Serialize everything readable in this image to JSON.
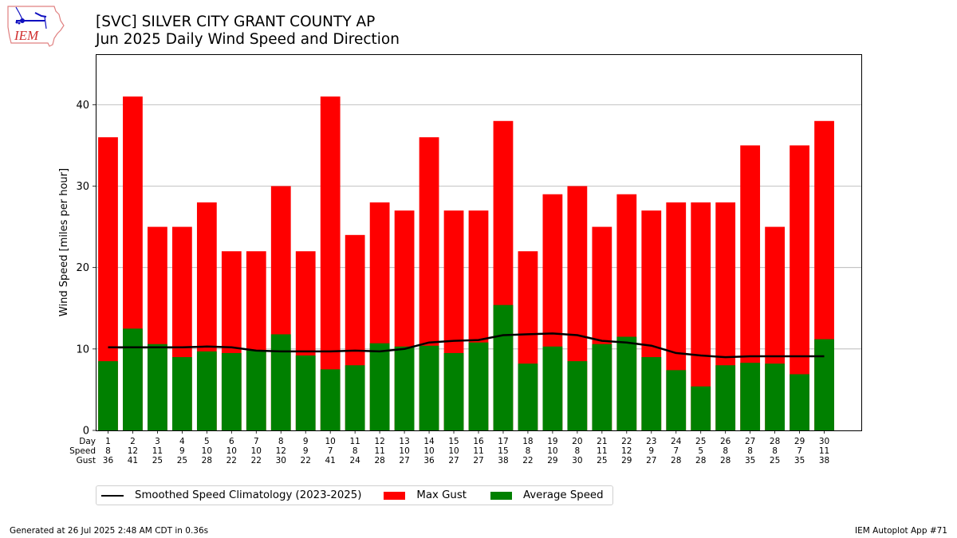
{
  "header": {
    "title_line1": "[SVC] SILVER CITY GRANT COUNTY AP",
    "title_line2": "Jun 2025 Daily Wind Speed and Direction",
    "logo_text": "IEM"
  },
  "chart_data": {
    "type": "bar",
    "title": "[SVC] SILVER CITY GRANT COUNTY AP\nJun 2025 Daily Wind Speed and Direction",
    "xlabel": "",
    "ylabel": "Wind Speed [miles per hour]",
    "xlim": [
      0.5,
      31.5
    ],
    "ylim": [
      0,
      46.2
    ],
    "yticks": [
      0,
      10,
      20,
      30,
      40
    ],
    "grid": "horizontal",
    "legend_placement": "below-left",
    "table_row_labels": [
      "Day",
      "Speed",
      "Gust"
    ],
    "days": [
      1,
      2,
      3,
      4,
      5,
      6,
      7,
      8,
      9,
      10,
      11,
      12,
      13,
      14,
      15,
      16,
      17,
      18,
      19,
      20,
      21,
      22,
      23,
      24,
      25,
      26,
      27,
      28,
      29,
      30
    ],
    "speed_labels": [
      8,
      12,
      11,
      9,
      10,
      10,
      10,
      12,
      9,
      7,
      8,
      11,
      10,
      10,
      10,
      11,
      15,
      8,
      10,
      8,
      11,
      12,
      9,
      7,
      5,
      8,
      8,
      8,
      7,
      11
    ],
    "gust_labels": [
      36,
      41,
      25,
      25,
      28,
      22,
      22,
      30,
      22,
      41,
      24,
      28,
      27,
      36,
      27,
      27,
      38,
      22,
      29,
      30,
      25,
      29,
      27,
      28,
      28,
      28,
      35,
      25,
      35,
      38
    ],
    "series": [
      {
        "name": "Max Gust",
        "kind": "bar",
        "color": "#ff0000",
        "values": [
          36,
          41,
          25,
          25,
          28,
          22,
          22,
          30,
          22,
          41,
          24,
          28,
          27,
          36,
          27,
          27,
          38,
          22,
          29,
          30,
          25,
          29,
          27,
          28,
          28,
          28,
          35,
          25,
          35,
          38
        ]
      },
      {
        "name": "Average Speed",
        "kind": "bar",
        "color": "#008000",
        "values": [
          8.5,
          12.5,
          10.6,
          9.0,
          9.7,
          9.5,
          9.8,
          11.8,
          9.2,
          7.5,
          8.0,
          10.7,
          10.3,
          10.4,
          9.5,
          10.8,
          15.4,
          8.2,
          10.3,
          8.5,
          10.6,
          11.5,
          9.0,
          7.4,
          5.4,
          8.0,
          8.3,
          8.2,
          6.9,
          11.2
        ]
      },
      {
        "name": "Smoothed Speed Climatology (2023-2025)",
        "kind": "line",
        "color": "#000000",
        "values": [
          10.2,
          10.2,
          10.2,
          10.2,
          10.3,
          10.2,
          9.8,
          9.7,
          9.7,
          9.7,
          9.8,
          9.7,
          10.0,
          10.8,
          11.0,
          11.1,
          11.7,
          11.8,
          11.9,
          11.7,
          11.0,
          10.8,
          10.4,
          9.5,
          9.2,
          9.0,
          9.1,
          9.1,
          9.1,
          9.1
        ]
      }
    ]
  },
  "legend": {
    "items": [
      {
        "label": "Smoothed Speed Climatology (2023-2025)",
        "color": "#000000",
        "kind": "line"
      },
      {
        "label": "Max Gust",
        "color": "#ff0000",
        "kind": "patch"
      },
      {
        "label": "Average Speed",
        "color": "#008000",
        "kind": "patch"
      }
    ]
  },
  "footer": {
    "generated": "Generated at 26 Jul 2025 2:48 AM CDT in 0.36s",
    "app": "IEM Autoplot App #71"
  }
}
